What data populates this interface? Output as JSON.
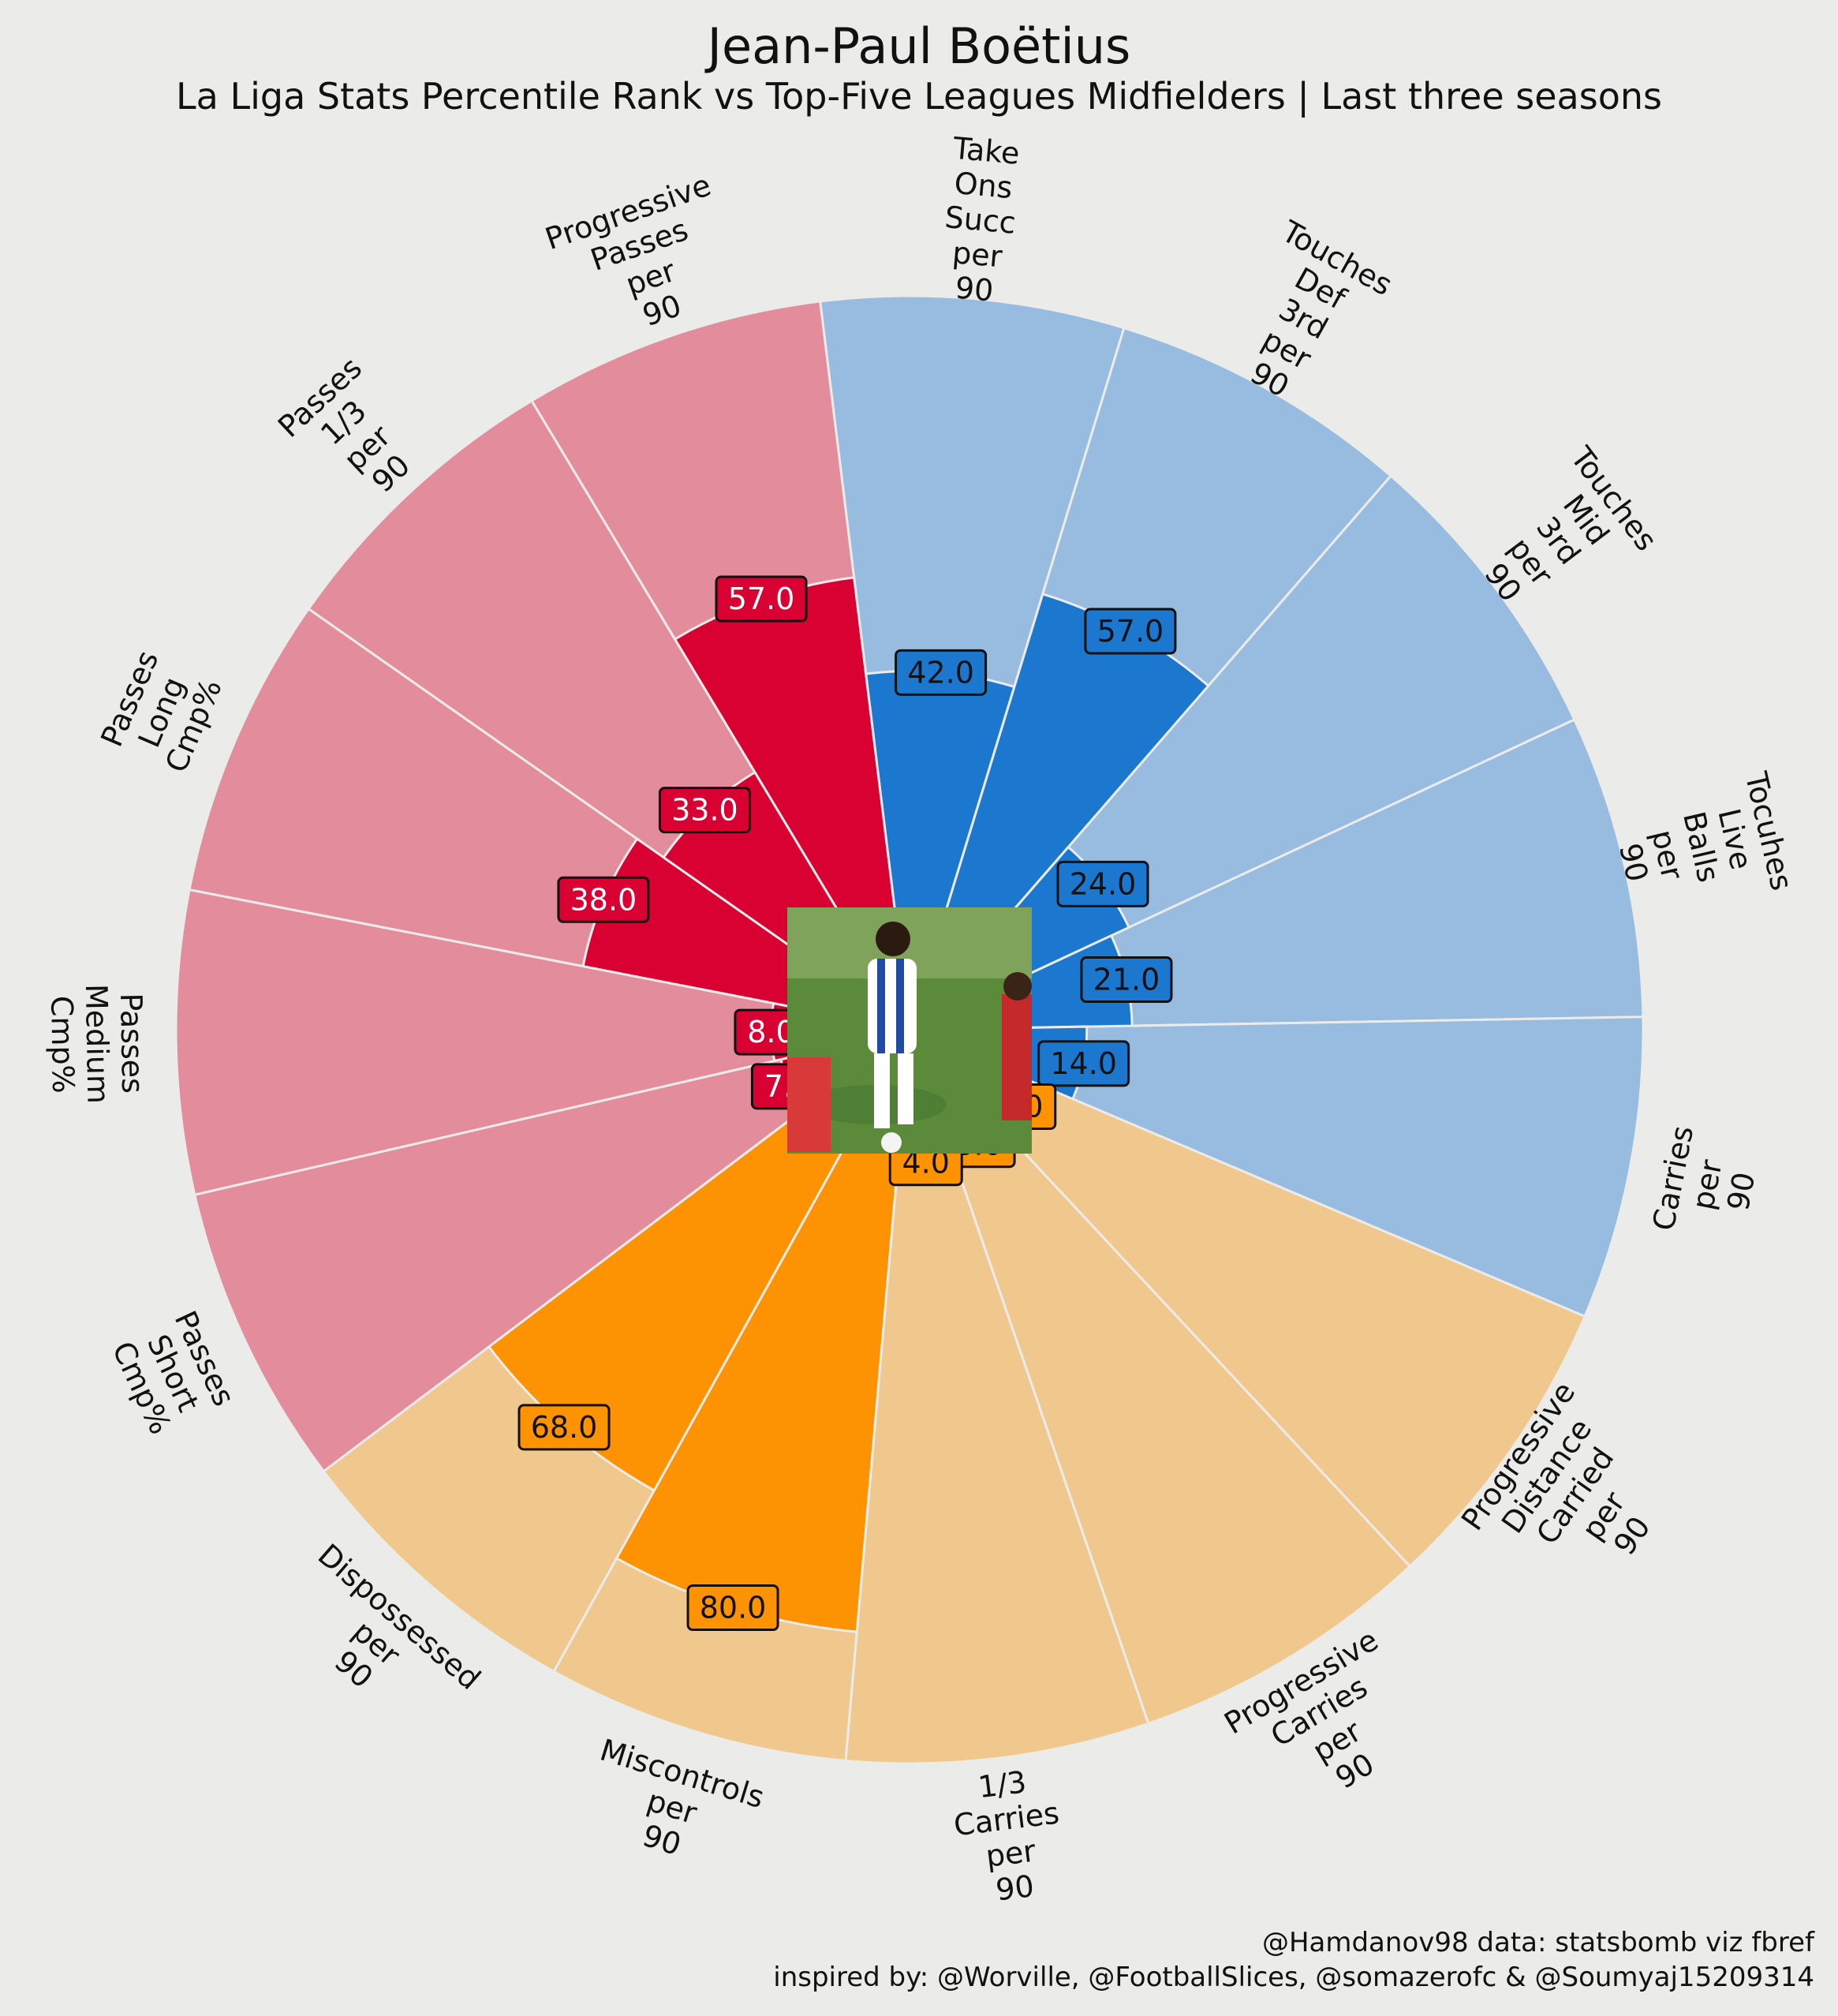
{
  "chart_data": {
    "type": "pie",
    "title": "Jean-Paul Boëtius",
    "subtitle": "La Liga Stats Percentile Rank vs Top-Five Leagues Midfielders | Last three seasons",
    "rlim": [
      0,
      100
    ],
    "categories": [
      "Take Ons Succ per 90",
      "Touches Def 3rd per 90",
      "Touches Mid 3rd per 90",
      "Tocuhes Live Balls per 90",
      "Carries per 90",
      "Progressive Distance Carried per 90",
      "Progressive Carries per 90",
      "1/3 Carries per 90",
      "Miscontrols per 90",
      "Dispossessed per 90",
      "Passes Short Cmp%",
      "Passes Medium Cmp%",
      "Passes Long Cmp%",
      "Passes 1/3 per 90",
      "Progressive Passes per 90"
    ],
    "values": [
      42,
      57,
      24,
      21,
      14,
      5,
      6,
      4,
      80,
      68,
      7,
      8,
      38,
      33,
      57
    ],
    "value_labels": [
      "42.0",
      "57.0",
      "24.0",
      "21.0",
      "14.0",
      "5.0",
      "6.0",
      "4.0",
      "80.0",
      "68.0",
      "7.0",
      "8.0",
      "38.0",
      "33.0",
      "57.0"
    ],
    "groups": [
      "possession",
      "possession",
      "possession",
      "possession",
      "possession",
      "carrying",
      "carrying",
      "carrying",
      "carrying",
      "carrying",
      "passing",
      "passing",
      "passing",
      "passing",
      "passing"
    ],
    "colors": {
      "possession": {
        "bar": "#1c78cf",
        "background": "#98bcdf",
        "label_text": "#111111"
      },
      "carrying": {
        "bar": "#fd9302",
        "background": "#f0c78d",
        "label_text": "#111111"
      },
      "passing": {
        "bar": "#d90032",
        "background": "#e38c9c",
        "label_text": "#ffffff"
      },
      "divider": "#ebebe9"
    },
    "image": "player-photo"
  },
  "credits": {
    "line1": "@Hamdanov98 data: statsbomb viz fbref",
    "line2": "inspired by: @Worville, @FootballSlices, @somazerofc & @Soumyaj15209314"
  }
}
